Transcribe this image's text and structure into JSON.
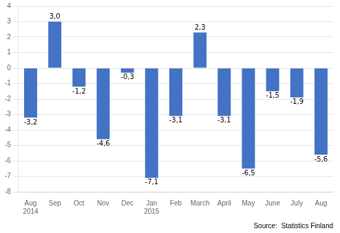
{
  "chart_data": {
    "type": "bar",
    "categories": [
      "Aug\n2014",
      "Sep",
      "Oct",
      "Nov",
      "Dec",
      "Jan\n2015",
      "Feb",
      "March",
      "April",
      "May",
      "June",
      "July",
      "Aug"
    ],
    "values": [
      -3.2,
      3.0,
      -1.2,
      -4.6,
      -0.3,
      -7.1,
      -3.1,
      2.3,
      -3.1,
      -6.5,
      -1.5,
      -1.9,
      -5.6
    ],
    "value_labels": [
      "-3,2",
      "3,0",
      "-1,2",
      "-4,6",
      "-0,3",
      "-7,1",
      "-3,1",
      "2,3",
      "-3,1",
      "-6,5",
      "-1,5",
      "-1,9",
      "-5,6"
    ],
    "color": "#4472C4",
    "ylim": [
      -8,
      4
    ],
    "yticks": [
      -8,
      -7,
      -6,
      -5,
      -4,
      -3,
      -2,
      -1,
      0,
      1,
      2,
      3,
      4
    ],
    "grid": true,
    "data_labels": true,
    "annotation": "Source:  Statistics Finland"
  }
}
